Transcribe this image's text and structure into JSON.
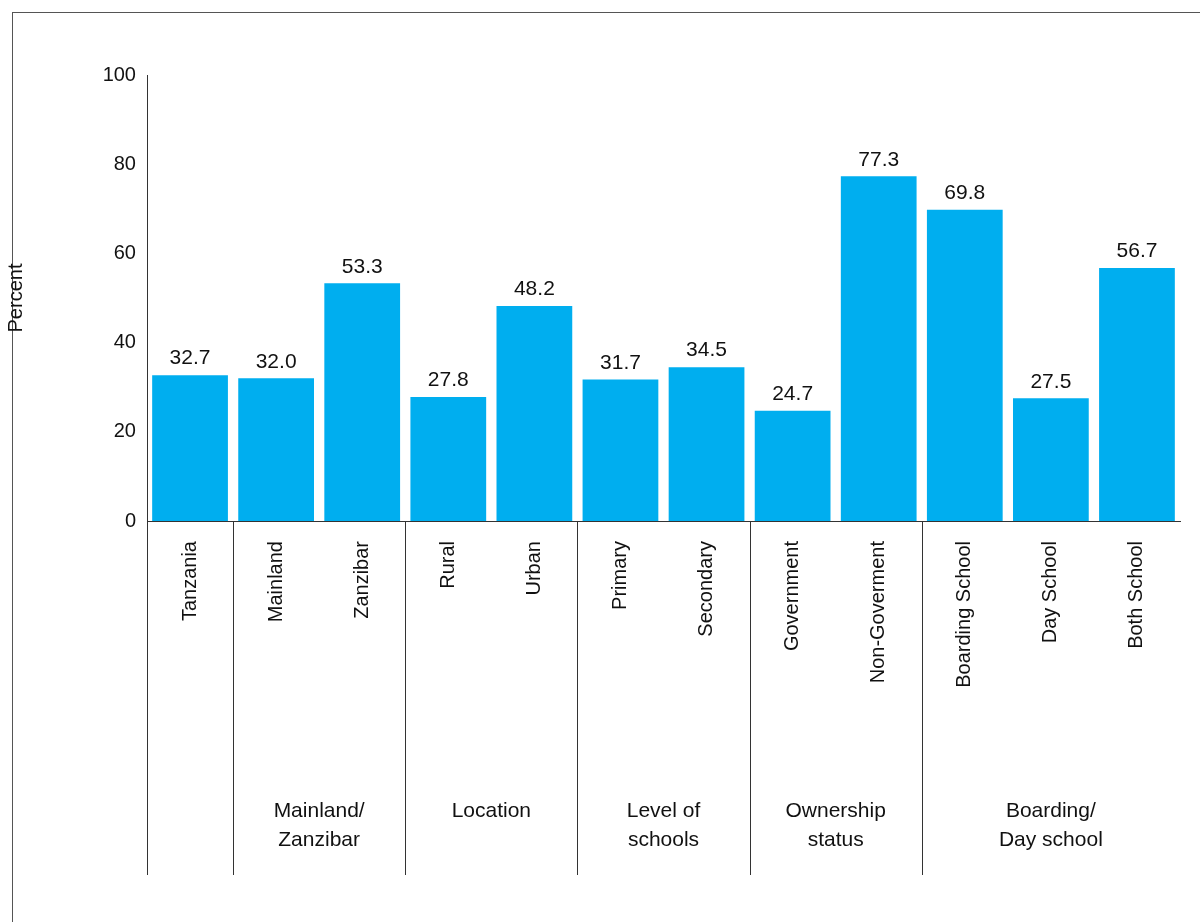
{
  "chart_data": {
    "type": "bar",
    "categories": [
      "Tanzania",
      "Mainland",
      "Zanzibar",
      "Rural",
      "Urban",
      "Primary",
      "Secondary",
      "Government",
      "Non-Goverment",
      "Boarding School",
      "Day School",
      "Both School"
    ],
    "values": [
      32.7,
      32.0,
      53.3,
      27.8,
      48.2,
      31.7,
      34.5,
      24.7,
      77.3,
      69.8,
      27.5,
      56.7
    ],
    "color": "#00aeef",
    "ylabel": "Percent",
    "ylim": [
      0,
      100
    ],
    "yticks": [
      0,
      20,
      40,
      60,
      80,
      100
    ],
    "value_labels": [
      "32.7",
      "32.0",
      "53.3",
      "27.8",
      "48.2",
      "31.7",
      "34.5",
      "24.7",
      "77.3",
      "69.8",
      "27.5",
      "56.7"
    ],
    "grid": false,
    "legend": false,
    "annotations": [
      "Mainland/\nZanzibar",
      "Location",
      "Level of\nschools",
      "Ownership\nstatus",
      "Boarding/\nDay school"
    ]
  }
}
